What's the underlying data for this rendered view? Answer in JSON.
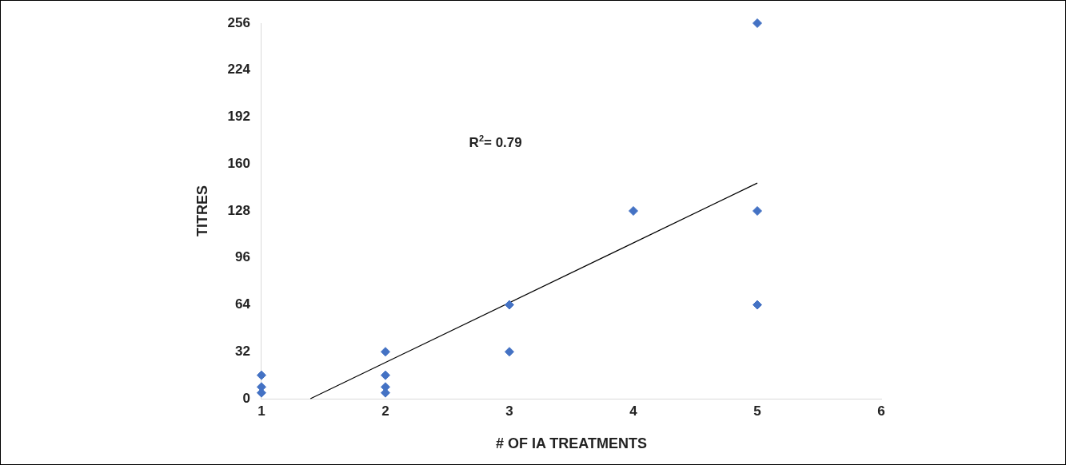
{
  "chart_data": {
    "type": "scatter",
    "xlabel": "# OF IA TREATMENTS",
    "ylabel": "TITRES",
    "x": [
      1,
      1,
      1,
      2,
      2,
      2,
      2,
      3,
      3,
      4,
      5,
      5,
      5
    ],
    "series": [
      {
        "color": "#4472c4",
        "marker": "diamond",
        "values": [
          16,
          8,
          4,
          32,
          16,
          8,
          4,
          64,
          32,
          128,
          256,
          128,
          64
        ]
      },
      {
        "type": "line",
        "color": "#000000",
        "marker": "none",
        "x": [
          1.395,
          5
        ],
        "values": [
          0,
          147
        ]
      }
    ],
    "xlim": [
      1,
      6
    ],
    "xticks": [
      1,
      2,
      3,
      4,
      5,
      6
    ],
    "ylim": [
      0,
      256
    ],
    "yticks": [
      0,
      32,
      64,
      96,
      128,
      160,
      192,
      224,
      256
    ],
    "grid": false,
    "legend": false,
    "annotations": [
      "R$^{2}$= 0.79"
    ]
  }
}
